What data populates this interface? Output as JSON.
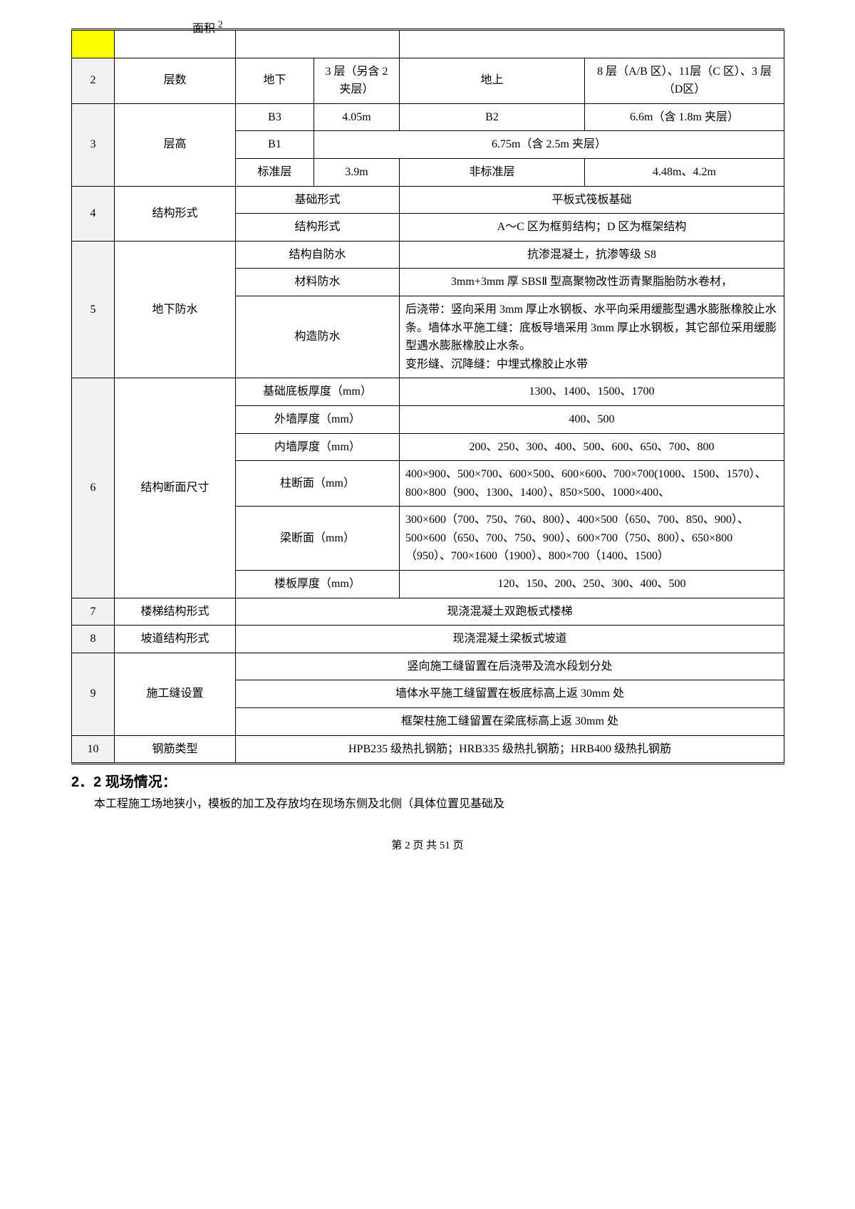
{
  "overlay_struck": "面积",
  "overlay_sup": "2",
  "row2": {
    "num": "2",
    "label": "层数",
    "a": "地下",
    "b": "3 层（另含 2 夹层）",
    "c": "地上",
    "d": "8 层（A/B 区）、11层（C 区）、3 层（D区）"
  },
  "row3": {
    "num": "3",
    "label": "层高",
    "l1a": "B3",
    "l1b": "4.05m",
    "l1c": "B2",
    "l1d": "6.6m（含 1.8m 夹层）",
    "l2a": "B1",
    "l2rest": "6.75m（含 2.5m 夹层）",
    "l3a": "标准层",
    "l3b": "3.9m",
    "l3c": "非标准层",
    "l3d": "4.48m、4.2m"
  },
  "row4": {
    "num": "4",
    "label": "结构形式",
    "l1a": "基础形式",
    "l1b": "平板式筏板基础",
    "l2a": "结构形式",
    "l2b": "A～C 区为框剪结构；D 区为框架结构"
  },
  "row5": {
    "num": "5",
    "label": "地下防水",
    "l1a": "结构自防水",
    "l1b": "抗渗混凝土，抗渗等级 S8",
    "l2a": "材料防水",
    "l2b": "3mm+3mm 厚 SBSⅡ 型高聚物改性沥青聚脂胎防水卷材，",
    "l3a": "构造防水",
    "l3b": "后浇带：竖向采用 3mm 厚止水钢板、水平向采用缓膨型遇水膨胀橡胶止水条。墙体水平施工缝：底板导墙采用 3mm 厚止水钢板，其它部位采用缓膨型遇水膨胀橡胶止水条。",
    "l3c": "变形缝、沉降缝：中埋式橡胶止水带"
  },
  "row6": {
    "num": "6",
    "label": "结构断面尺寸",
    "l1a": "基础底板厚度（mm）",
    "l1b": "1300、1400、1500、1700",
    "l2a": "外墙厚度（mm）",
    "l2b": "400、500",
    "l3a": "内墙厚度（mm）",
    "l3b": "200、250、300、400、500、600、650、700、800",
    "l4a": "柱断面（mm）",
    "l4b": "400×900、500×700、600×500、600×600、700×700(1000、1500、1570）、800×800（900、1300、1400）、850×500、1000×400、",
    "l5a": "梁断面（mm）",
    "l5b": "300×600（700、750、760、800）、400×500（650、700、850、900）、500×600（650、700、750、900）、600×700（750、800）、650×800（950）、700×1600（1900）、800×700（1400、1500）",
    "l6a": "楼板厚度（mm）",
    "l6b": "120、150、200、250、300、400、500"
  },
  "row7": {
    "num": "7",
    "label": "楼梯结构形式",
    "val": "现浇混凝土双跑板式楼梯"
  },
  "row8": {
    "num": "8",
    "label": "坡道结构形式",
    "val": "现浇混凝土梁板式坡道"
  },
  "row9": {
    "num": "9",
    "label": "施工缝设置",
    "l1": "竖向施工缝留置在后浇带及流水段划分处",
    "l2": "墙体水平施工缝留置在板底标高上返 30mm 处",
    "l3": "框架柱施工缝留置在梁底标高上返 30mm 处"
  },
  "row10": {
    "num": "10",
    "label": "钢筋类型",
    "val": "HPB235 级热扎钢筋；HRB335 级热扎钢筋；HRB400 级热扎钢筋"
  },
  "section_title": "2．2 现场情况：",
  "body_text": "本工程施工场地狭小，模板的加工及存放均在现场东侧及北侧（具体位置见基础及",
  "footer": "第 2 页 共 51 页"
}
